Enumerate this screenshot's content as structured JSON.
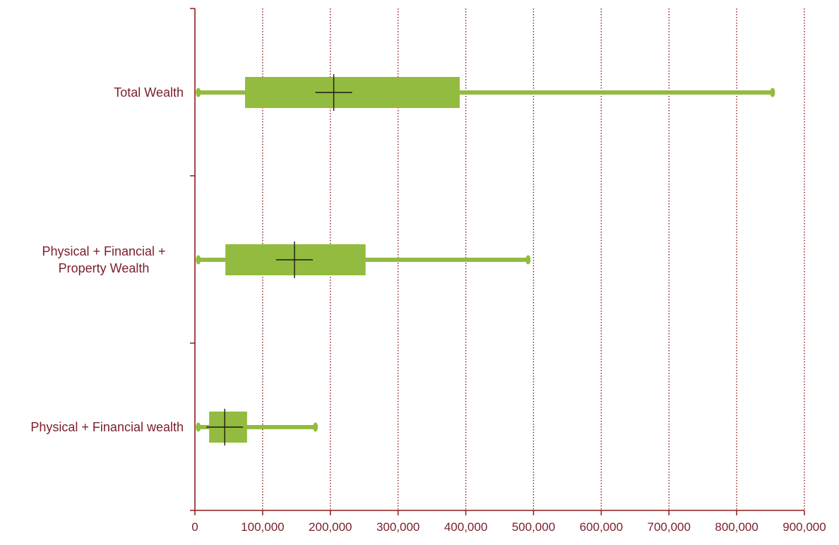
{
  "chart_data": {
    "type": "boxplot",
    "orientation": "horizontal",
    "categories": [
      "Total Wealth",
      "Physical + Financial + Property Wealth",
      "Physical + Financial wealth"
    ],
    "category_label_lines": [
      [
        "Total Wealth"
      ],
      [
        "Physical + Financial +",
        "Property Wealth"
      ],
      [
        "Physical + Financial wealth"
      ]
    ],
    "boxes": [
      {
        "name": "Total Wealth",
        "whisker_low": 5000,
        "q1": 74000,
        "q3": 391000,
        "whisker_high": 853000,
        "mean": 205000
      },
      {
        "name": "Physical + Financial + Property Wealth",
        "whisker_low": 5000,
        "q1": 45000,
        "q3": 252000,
        "whisker_high": 492000,
        "mean": 147000
      },
      {
        "name": "Physical + Financial wealth",
        "whisker_low": 5000,
        "q1": 21000,
        "q3": 77000,
        "whisker_high": 178000,
        "mean": 44000
      }
    ],
    "xlim": [
      0,
      900000
    ],
    "x_ticks": [
      0,
      100000,
      200000,
      300000,
      400000,
      500000,
      600000,
      700000,
      800000,
      900000
    ],
    "x_tick_labels": [
      "0",
      "100,000",
      "200,000",
      "300,000",
      "400,000",
      "500,000",
      "600,000",
      "700,000",
      "800,000",
      "900,000"
    ],
    "title": "",
    "xlabel": "",
    "ylabel": "",
    "grid": "vertical dotted",
    "legend": "none",
    "colors": {
      "box": "#93bb3f",
      "axis": "#8b1a1a",
      "grid": "#8b1a1a",
      "label": "#7a1e2a",
      "mean_marker": "#1a1a1a"
    }
  }
}
